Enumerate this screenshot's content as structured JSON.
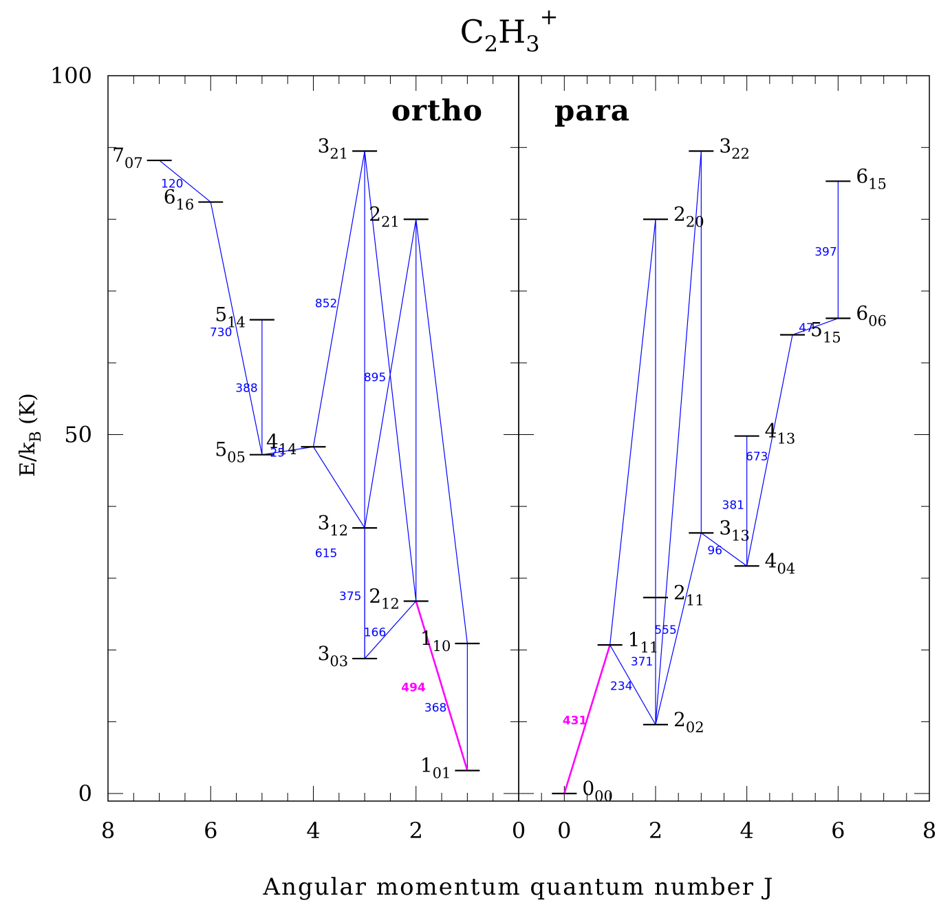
{
  "title": {
    "base": "C",
    "sub1": "2",
    "mid": "H",
    "sub2": "3",
    "sup": "+"
  },
  "xlabel": "Angular momentum quantum number J",
  "ylabel": {
    "main": "E/k",
    "sub": "B",
    "unit": " (K)"
  },
  "colors": {
    "axes": "#000000",
    "line": "#0000ff",
    "highlight": "#ff00ff",
    "level": "#000000",
    "label": "#000000"
  },
  "chart_data": {
    "type": "level-diagram",
    "ylim": [
      0,
      100
    ],
    "yticks": [
      0,
      50,
      100
    ],
    "panels": [
      {
        "name": "ortho",
        "xlim": [
          8,
          0
        ],
        "xticks": [
          8,
          6,
          4,
          2,
          0
        ],
        "levels": [
          {
            "id": "1_01",
            "J": 1,
            "E": 3.2,
            "lab": "1",
            "sub": "01",
            "side": "left"
          },
          {
            "id": "1_10",
            "J": 1,
            "E": 20.9,
            "lab": "1",
            "sub": "10",
            "side": "left"
          },
          {
            "id": "2_12",
            "J": 2,
            "E": 26.8,
            "lab": "2",
            "sub": "12",
            "side": "left"
          },
          {
            "id": "2_21",
            "J": 2,
            "E": 80.0,
            "lab": "2",
            "sub": "21",
            "side": "left"
          },
          {
            "id": "3_03",
            "J": 3,
            "E": 18.8,
            "lab": "3",
            "sub": "03",
            "side": "left"
          },
          {
            "id": "3_12",
            "J": 3,
            "E": 37.0,
            "lab": "3",
            "sub": "12",
            "side": "left"
          },
          {
            "id": "3_21",
            "J": 3,
            "E": 89.5,
            "lab": "3",
            "sub": "21",
            "side": "left"
          },
          {
            "id": "4_14",
            "J": 4,
            "E": 48.3,
            "lab": "4",
            "sub": "14",
            "side": "left"
          },
          {
            "id": "5_05",
            "J": 5,
            "E": 47.2,
            "lab": "5",
            "sub": "05",
            "side": "left"
          },
          {
            "id": "5_14",
            "J": 5,
            "E": 66.0,
            "lab": "5",
            "sub": "14",
            "side": "left"
          },
          {
            "id": "6_16",
            "J": 6,
            "E": 82.4,
            "lab": "6",
            "sub": "16",
            "side": "left"
          },
          {
            "id": "7_07",
            "J": 7,
            "E": 88.2,
            "lab": "7",
            "sub": "07",
            "side": "left"
          }
        ],
        "transitions": [
          {
            "from": "1_01",
            "to": "1_10"
          },
          {
            "from": "1_01",
            "to": "2_12",
            "highlight": true
          },
          {
            "from": "1_10",
            "to": "2_21"
          },
          {
            "from": "2_12",
            "to": "2_21"
          },
          {
            "from": "2_12",
            "to": "3_03"
          },
          {
            "from": "2_12",
            "to": "3_21"
          },
          {
            "from": "2_21",
            "to": "3_12"
          },
          {
            "from": "3_03",
            "to": "3_12"
          },
          {
            "from": "3_03",
            "to": "3_21"
          },
          {
            "from": "3_12",
            "to": "4_14"
          },
          {
            "from": "3_21",
            "to": "4_14"
          },
          {
            "from": "4_14",
            "to": "5_05"
          },
          {
            "from": "5_05",
            "to": "5_14"
          },
          {
            "from": "5_05",
            "to": "6_16"
          },
          {
            "from": "6_16",
            "to": "7_07"
          }
        ],
        "annotations": [
          {
            "text": "494",
            "J": 2.05,
            "E": 14.8,
            "highlight": true
          },
          {
            "text": "368",
            "J": 1.62,
            "E": 12.0
          },
          {
            "text": "166",
            "J": 2.8,
            "E": 22.5
          },
          {
            "text": "375",
            "J": 3.28,
            "E": 27.5
          },
          {
            "text": "615",
            "J": 3.75,
            "E": 33.5
          },
          {
            "text": "895",
            "J": 2.8,
            "E": 58.0
          },
          {
            "text": "852",
            "J": 3.75,
            "E": 68.3
          },
          {
            "text": "25",
            "J": 4.7,
            "E": 47.5
          },
          {
            "text": "388",
            "J": 5.3,
            "E": 56.5
          },
          {
            "text": "730",
            "J": 5.8,
            "E": 64.3
          },
          {
            "text": "120",
            "J": 6.75,
            "E": 85.0
          }
        ]
      },
      {
        "name": "para",
        "xlim": [
          -1,
          8
        ],
        "xticks": [
          0,
          2,
          4,
          6,
          8
        ],
        "levels": [
          {
            "id": "0_00",
            "J": 0,
            "E": 0.0,
            "lab": "0",
            "sub": "00",
            "side": "right"
          },
          {
            "id": "1_11",
            "J": 1,
            "E": 20.7,
            "lab": "1",
            "sub": "11",
            "side": "right"
          },
          {
            "id": "2_02",
            "J": 2,
            "E": 9.6,
            "lab": "2",
            "sub": "02",
            "side": "right"
          },
          {
            "id": "2_11",
            "J": 2,
            "E": 27.3,
            "lab": "2",
            "sub": "11",
            "side": "right"
          },
          {
            "id": "2_20",
            "J": 2,
            "E": 80.0,
            "lab": "2",
            "sub": "20",
            "side": "right"
          },
          {
            "id": "3_13",
            "J": 3,
            "E": 36.3,
            "lab": "3",
            "sub": "13",
            "side": "right"
          },
          {
            "id": "3_22",
            "J": 3,
            "E": 89.5,
            "lab": "3",
            "sub": "22",
            "side": "right"
          },
          {
            "id": "4_04",
            "J": 4,
            "E": 31.7,
            "lab": "4",
            "sub": "04",
            "side": "right"
          },
          {
            "id": "4_13",
            "J": 4,
            "E": 49.8,
            "lab": "4",
            "sub": "13",
            "side": "right"
          },
          {
            "id": "5_15",
            "J": 5,
            "E": 63.9,
            "lab": "5",
            "sub": "15",
            "side": "right"
          },
          {
            "id": "6_06",
            "J": 6,
            "E": 66.2,
            "lab": "6",
            "sub": "06",
            "side": "right"
          },
          {
            "id": "6_15",
            "J": 6,
            "E": 85.3,
            "lab": "6",
            "sub": "15",
            "side": "right"
          }
        ],
        "transitions": [
          {
            "from": "0_00",
            "to": "1_11",
            "highlight": true
          },
          {
            "from": "1_11",
            "to": "2_02"
          },
          {
            "from": "1_11",
            "to": "2_20"
          },
          {
            "from": "2_02",
            "to": "2_20"
          },
          {
            "from": "2_02",
            "to": "3_22"
          },
          {
            "from": "2_02",
            "to": "3_13"
          },
          {
            "from": "3_13",
            "to": "3_22"
          },
          {
            "from": "3_13",
            "to": "4_04"
          },
          {
            "from": "4_04",
            "to": "4_13"
          },
          {
            "from": "4_04",
            "to": "5_15"
          },
          {
            "from": "5_15",
            "to": "6_06"
          },
          {
            "from": "6_06",
            "to": "6_15"
          }
        ],
        "annotations": [
          {
            "text": "431",
            "J": 0.23,
            "E": 10.2,
            "highlight": true
          },
          {
            "text": "234",
            "J": 1.25,
            "E": 15.0
          },
          {
            "text": "371",
            "J": 1.7,
            "E": 18.4
          },
          {
            "text": "555",
            "J": 2.22,
            "E": 22.8
          },
          {
            "text": "96",
            "J": 3.3,
            "E": 33.9
          },
          {
            "text": "381",
            "J": 3.7,
            "E": 40.2
          },
          {
            "text": "673",
            "J": 4.22,
            "E": 47.0
          },
          {
            "text": "47",
            "J": 5.3,
            "E": 64.9
          },
          {
            "text": "397",
            "J": 5.73,
            "E": 75.5
          }
        ]
      }
    ]
  }
}
